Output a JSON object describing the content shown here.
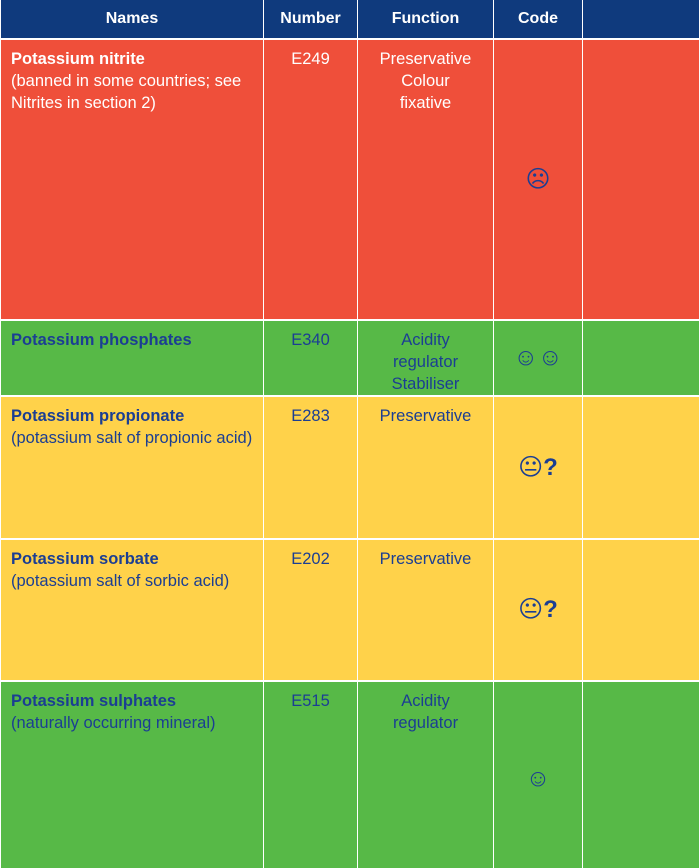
{
  "table": {
    "headers": [
      "Names",
      "Number",
      "Function",
      "Code"
    ],
    "rows": [
      {
        "name": "Potassium nitrite",
        "note": "(banned in some countries; see Nitrites in section 2)",
        "number": "E249",
        "function": [
          "Preservative",
          "Colour",
          "fixative"
        ],
        "code": "☹",
        "code_mark": null
      },
      {
        "name": "Potassium phosphates",
        "note": null,
        "number": "E340",
        "function": [
          "Acidity",
          "regulator",
          "Stabiliser"
        ],
        "code": "☺☺",
        "code_mark": null
      },
      {
        "name": "Potassium propionate",
        "note": "(potassium salt of propionic acid)",
        "number": "E283",
        "function": [
          "Preservative"
        ],
        "code": "😐",
        "code_mark": "?"
      },
      {
        "name": "Potassium sorbate",
        "note": "(potassium salt of sorbic acid)",
        "number": "E202",
        "function": [
          "Preservative"
        ],
        "code": "😐",
        "code_mark": "?"
      },
      {
        "name": "Potassium sulphates",
        "note": "(naturally occurring mineral)",
        "number": "E515",
        "function": [
          "Acidity",
          "regulator"
        ],
        "code": "☺",
        "code_mark": null
      }
    ]
  }
}
